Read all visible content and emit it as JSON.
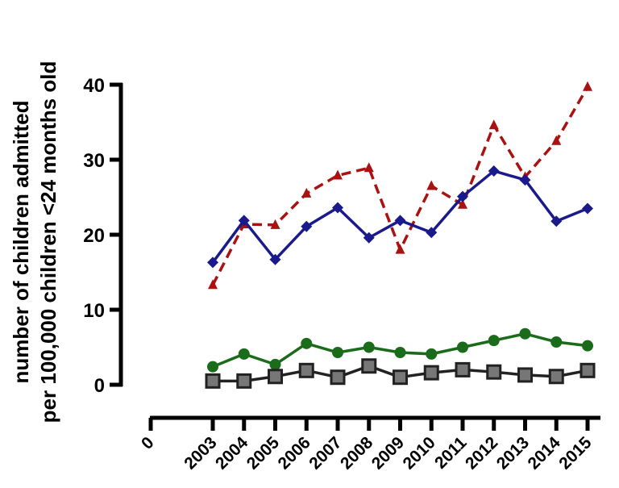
{
  "chart_data": {
    "type": "line",
    "title": "",
    "xlabel": "",
    "ylabel_lines": [
      "number of children admitted",
      "per 100,000 children <24 months old"
    ],
    "ylim": [
      0,
      40
    ],
    "yticks": [
      "0",
      "10",
      "20",
      "30",
      "40"
    ],
    "x_origin_label": "0",
    "categories": [
      "2003",
      "2004",
      "2005",
      "2006",
      "2007",
      "2008",
      "2009",
      "2010",
      "2011",
      "2012",
      "2013",
      "2014",
      "2015"
    ],
    "grid": false,
    "legend": "none",
    "series": [
      {
        "values": [
          13.3,
          21.4,
          21.3,
          25.5,
          27.9,
          28.9,
          18.0,
          26.5,
          24.0,
          34.6,
          27.7,
          32.5,
          39.7
        ],
        "color": "#aa1111",
        "marker": "triangle",
        "line_style": "dashed"
      },
      {
        "values": [
          16.3,
          21.9,
          16.7,
          21.1,
          23.6,
          19.6,
          21.9,
          20.3,
          25.1,
          28.5,
          27.3,
          21.8,
          23.5
        ],
        "color": "#1a1a8c",
        "marker": "diamond",
        "line_style": "solid"
      },
      {
        "values": [
          2.4,
          4.1,
          2.7,
          5.5,
          4.3,
          5.0,
          4.3,
          4.1,
          5.0,
          5.9,
          6.8,
          5.7,
          5.2
        ],
        "color": "#1a6b1a",
        "marker": "circle",
        "line_style": "solid"
      },
      {
        "values": [
          0.5,
          0.5,
          1.1,
          1.9,
          1.0,
          2.5,
          1.0,
          1.6,
          2.0,
          1.7,
          1.3,
          1.1,
          1.9
        ],
        "color": "#222222",
        "marker": "square",
        "marker_fill": "#777777",
        "line_style": "solid"
      }
    ]
  }
}
